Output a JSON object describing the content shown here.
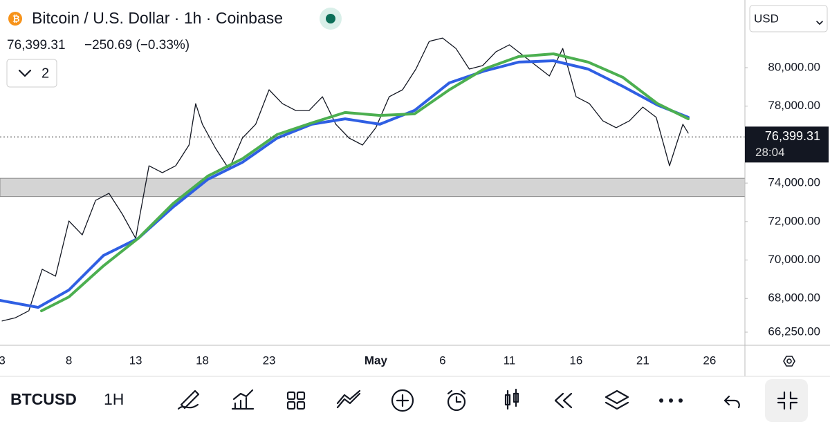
{
  "ui": {
    "title": "Bitcoin / U.S. Dollar · 1h · Coinbase",
    "change": "−250.69 (−0.33%)",
    "indicators": "2",
    "currency": "USD",
    "countdown": "28:04",
    "symbol": "BTCUSD",
    "interval": "1H"
  },
  "chart_data": {
    "type": "line",
    "last_price": {
      "value": 76399.31,
      "label": "76,399.31"
    },
    "zone": [
      73300,
      74250
    ],
    "xlim": [
      2.84,
      58.65
    ],
    "ylim": [
      65568,
      83519
    ],
    "xticks": [
      3,
      8,
      13,
      18,
      23,
      {
        "value": 31,
        "label": "May"
      },
      {
        "value": 36,
        "label": "6"
      },
      {
        "value": 41,
        "label": "11"
      },
      {
        "value": 46,
        "label": "16"
      },
      {
        "value": 51,
        "label": "21"
      },
      {
        "value": 56,
        "label": "26"
      }
    ],
    "yticks": [
      {
        "value": 80000,
        "label": "80,000.00"
      },
      {
        "value": 78000,
        "label": "78,000.00"
      },
      {
        "value": 74000,
        "label": "74,000.00"
      },
      {
        "value": 72000,
        "label": "72,000.00"
      },
      {
        "value": 70000,
        "label": "70,000.00"
      },
      {
        "value": 68000,
        "label": "68,000.00"
      },
      {
        "value": 66250,
        "label": "66,250.00"
      }
    ],
    "series": [
      {
        "color": "#131722",
        "width": 1.3,
        "x": [
          3,
          4,
          5,
          6,
          7,
          8,
          9,
          10,
          11,
          12,
          13,
          14,
          15,
          16,
          17,
          17.5,
          18,
          19,
          20,
          21,
          22,
          23,
          24,
          25,
          26,
          27,
          28,
          29,
          30,
          31,
          32,
          33,
          34,
          35,
          36,
          37,
          38,
          39,
          40,
          41,
          42,
          43,
          44,
          45,
          46,
          47,
          48,
          49,
          50,
          51,
          52,
          53,
          53.5,
          54,
          54.4
        ],
        "values": [
          66830,
          67000,
          67360,
          69520,
          69160,
          72030,
          71310,
          73100,
          73470,
          72390,
          71130,
          74900,
          74540,
          74900,
          75980,
          78130,
          77060,
          75800,
          74720,
          76340,
          77060,
          78850,
          78130,
          77770,
          77770,
          78490,
          77060,
          76340,
          75980,
          76880,
          78490,
          78850,
          79930,
          81370,
          81540,
          81000,
          79930,
          80110,
          80830,
          81190,
          80650,
          80110,
          79570,
          81000,
          78490,
          78130,
          77240,
          76880,
          77240,
          77950,
          77420,
          74900,
          75980,
          77060,
          76600
        ]
      },
      {
        "color": "#2f5fe3",
        "width": 4,
        "x": [
          2.84,
          5.7,
          8.0,
          10.6,
          13.2,
          15.8,
          18.4,
          21.0,
          23.6,
          26.2,
          28.7,
          31.3,
          33.9,
          36.5,
          39.1,
          41.7,
          44.3,
          46.9,
          49.5,
          52.1,
          54.4
        ],
        "values": [
          67900,
          67540,
          68440,
          70240,
          71130,
          72750,
          74190,
          75080,
          76340,
          77060,
          77340,
          77060,
          77780,
          79210,
          79820,
          80290,
          80360,
          79930,
          79030,
          78060,
          77420
        ]
      },
      {
        "color": "#4caf50",
        "width": 4,
        "x": [
          5.95,
          8.0,
          10.6,
          13.2,
          15.8,
          18.4,
          21.0,
          23.6,
          26.2,
          28.7,
          31.3,
          33.9,
          36.5,
          39.1,
          41.7,
          44.3,
          46.9,
          49.5,
          52.1,
          54.4
        ],
        "values": [
          67360,
          68080,
          69700,
          71130,
          72930,
          74360,
          75260,
          76520,
          77130,
          77670,
          77520,
          77600,
          78850,
          79930,
          80580,
          80720,
          80290,
          79500,
          78130,
          77340
        ]
      }
    ]
  }
}
